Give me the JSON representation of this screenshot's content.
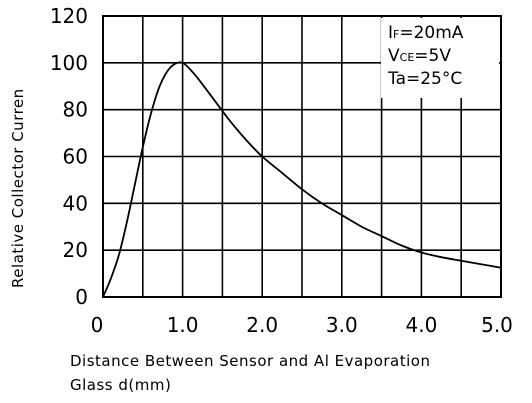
{
  "chart_data": {
    "type": "line",
    "title": "",
    "xlabel_line1": "Distance Between Sensor and Al Evaporation",
    "xlabel_line2": "Glass d(mm)",
    "ylabel": "Relative Collector Curren",
    "xlim": [
      0,
      5.0
    ],
    "ylim": [
      0,
      120
    ],
    "x_ticks": [
      "0",
      "1.0",
      "2.0",
      "3.0",
      "4.0",
      "5.0"
    ],
    "y_ticks": [
      "0",
      "20",
      "40",
      "60",
      "80",
      "100",
      "120"
    ],
    "grid": true,
    "legend_placement": "top-right",
    "conditions": [
      {
        "main": "I",
        "sub": "F",
        "rest": "=20mA"
      },
      {
        "main": "V",
        "sub": "CE",
        "rest": "=5V"
      },
      {
        "main": "Ta",
        "sub": "",
        "rest": "=25°C"
      }
    ],
    "series": [
      {
        "x": [
          0,
          0.1,
          0.2,
          0.3,
          0.4,
          0.5,
          0.6,
          0.7,
          0.8,
          0.9,
          1.0,
          1.1,
          1.2,
          1.4,
          1.6,
          1.8,
          2.0,
          2.25,
          2.5,
          2.75,
          3.0,
          3.25,
          3.5,
          3.75,
          4.0,
          4.25,
          4.5,
          4.75,
          5.0
        ],
        "y": [
          0,
          8,
          18,
          32,
          48,
          64,
          78,
          89,
          96,
          99.5,
          100,
          97,
          93,
          84,
          75,
          67,
          60,
          53,
          46,
          40,
          35,
          30,
          26,
          22,
          19,
          17,
          15.5,
          14,
          12.5
        ]
      }
    ]
  }
}
